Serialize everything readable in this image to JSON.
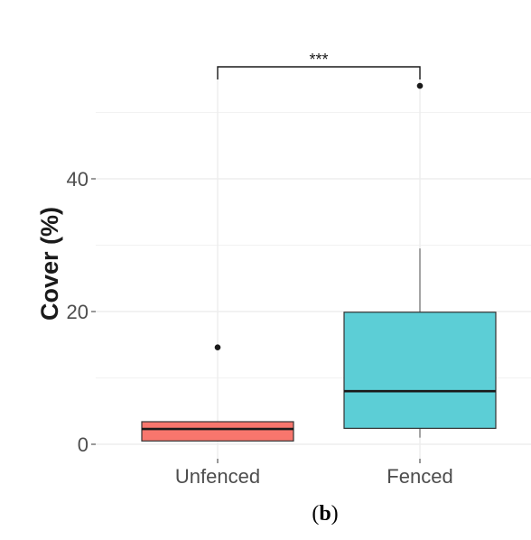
{
  "chart_data": {
    "type": "box",
    "categories": [
      "Unfenced",
      "Fenced"
    ],
    "ylabel": "Cover (%)",
    "yticks": [
      0,
      20,
      40
    ],
    "ylim": [
      -1.5,
      57
    ],
    "grid": true,
    "series": [
      {
        "category": "Unfenced",
        "color": "#F8766D",
        "whisker_low": 0.5,
        "q1": 0.5,
        "median": 2.3,
        "q3": 3.4,
        "whisker_high": 3.4,
        "outliers": [
          14.6
        ]
      },
      {
        "category": "Fenced",
        "color": "#5CCED6",
        "whisker_low": 1.0,
        "q1": 2.4,
        "median": 8.0,
        "q3": 19.9,
        "whisker_high": 29.5,
        "outliers": [
          54.0
        ]
      }
    ],
    "annotations": [
      {
        "text": "***",
        "from": "Unfenced",
        "to": "Fenced"
      }
    ]
  },
  "caption": {
    "open": "(",
    "label": "b",
    "close": ")"
  }
}
